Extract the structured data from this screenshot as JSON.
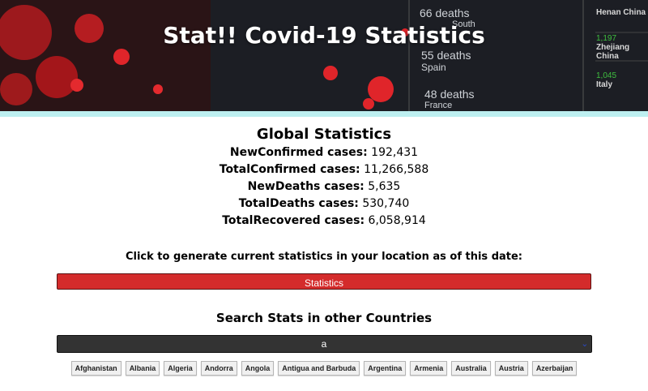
{
  "header": {
    "title": "Stat!! Covid-19 Statistics"
  },
  "hero_map": {
    "entries": [
      {
        "value": "66 deaths",
        "place": "South"
      },
      {
        "value": "55 deaths",
        "place": "Spain"
      },
      {
        "value": "48 deaths",
        "place": "France"
      }
    ],
    "right_panel": [
      {
        "value": "1,197",
        "place": "Zhejiang China"
      },
      {
        "value": "1,045",
        "place": "Italy"
      },
      {
        "value": "",
        "place": "Henan China"
      }
    ]
  },
  "colors": {
    "accent_bar": "#bdeff0",
    "stats_button": "#d42b2b",
    "search_bg": "#333333"
  },
  "global": {
    "heading": "Global Statistics",
    "rows": [
      {
        "label": "NewConfirmed cases:",
        "value": "192,431"
      },
      {
        "label": "TotalConfirmed cases:",
        "value": "11,266,588"
      },
      {
        "label": "NewDeaths cases:",
        "value": "5,635"
      },
      {
        "label": "TotalDeaths cases:",
        "value": "530,740"
      },
      {
        "label": "TotalRecovered cases:",
        "value": "6,058,914"
      }
    ]
  },
  "location": {
    "prompt": "Click to generate current statistics in your location as of this date:",
    "button_label": "Statistics"
  },
  "search": {
    "heading": "Search Stats in other Countries",
    "value": "a"
  },
  "countries": [
    "Afghanistan",
    "Albania",
    "Algeria",
    "Andorra",
    "Angola",
    "Antigua and Barbuda",
    "Argentina",
    "Armenia",
    "Australia",
    "Austria",
    "Azerbaijan"
  ]
}
